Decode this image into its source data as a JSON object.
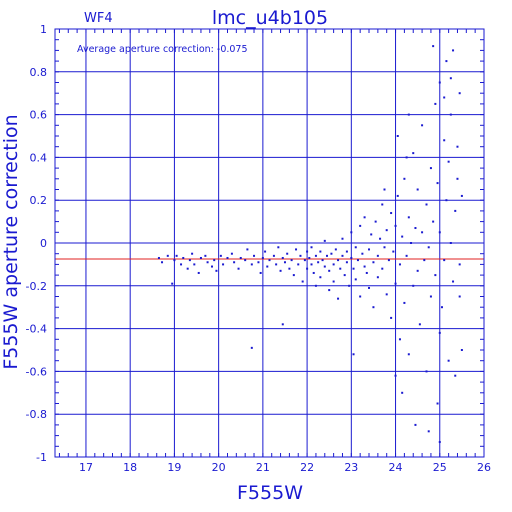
{
  "colors": {
    "frame": "#1a1ad0",
    "points": "#1a1ad0",
    "mean_line": "#e02020",
    "background": "#ffffff"
  },
  "chart_data": {
    "type": "scatter",
    "panel_label": "WF4",
    "title": "lmc_u4b105",
    "xlabel": "F555W",
    "ylabel": "F555W aperture correction",
    "annotation": "Average aperture correction: -0.075",
    "xlim": [
      16.3,
      26.0
    ],
    "ylim": [
      -1.0,
      1.0
    ],
    "grid": true,
    "xticks": [
      17,
      18,
      19,
      20,
      21,
      22,
      23,
      24,
      25,
      26
    ],
    "xtick_labels": [
      "17",
      "18",
      "19",
      "20",
      "21",
      "22",
      "23",
      "24",
      "25",
      "26"
    ],
    "yticks": [
      -1.0,
      -0.8,
      -0.6,
      -0.4,
      -0.2,
      0.0,
      0.2,
      0.4,
      0.6,
      0.8,
      1.0
    ],
    "ytick_labels": [
      "-1",
      "-0.8",
      "-0.6",
      "-0.4",
      "-0.2",
      "0",
      "0.2",
      "0.4",
      "0.6",
      "0.8",
      "1"
    ],
    "mean_line": -0.075,
    "series": [
      {
        "points": [
          [
            18.65,
            -0.07
          ],
          [
            18.72,
            -0.09
          ],
          [
            18.85,
            -0.06
          ],
          [
            18.95,
            -0.19
          ],
          [
            19.0,
            -0.08
          ],
          [
            19.05,
            -0.06
          ],
          [
            19.15,
            -0.1
          ],
          [
            19.2,
            -0.07
          ],
          [
            19.3,
            -0.12
          ],
          [
            19.35,
            -0.08
          ],
          [
            19.4,
            -0.05
          ],
          [
            19.45,
            -0.1
          ],
          [
            19.55,
            -0.14
          ],
          [
            19.6,
            -0.07
          ],
          [
            19.7,
            -0.06
          ],
          [
            19.75,
            -0.09
          ],
          [
            19.85,
            -0.11
          ],
          [
            19.9,
            -0.08
          ],
          [
            19.95,
            -0.13
          ],
          [
            20.05,
            -0.06
          ],
          [
            20.1,
            -0.1
          ],
          [
            20.2,
            -0.07
          ],
          [
            20.3,
            -0.05
          ],
          [
            20.35,
            -0.09
          ],
          [
            20.45,
            -0.12
          ],
          [
            20.5,
            -0.07
          ],
          [
            20.6,
            -0.08
          ],
          [
            20.65,
            -0.03
          ],
          [
            20.75,
            -0.1
          ],
          [
            20.8,
            -0.06
          ],
          [
            20.9,
            -0.09
          ],
          [
            20.95,
            -0.14
          ],
          [
            21.0,
            -0.07
          ],
          [
            21.05,
            -0.04
          ],
          [
            21.1,
            -0.11
          ],
          [
            21.15,
            -0.08
          ],
          [
            21.25,
            -0.06
          ],
          [
            21.3,
            -0.1
          ],
          [
            21.35,
            -0.02
          ],
          [
            21.4,
            -0.13
          ],
          [
            21.45,
            -0.07
          ],
          [
            21.5,
            -0.09
          ],
          [
            21.55,
            -0.05
          ],
          [
            21.6,
            -0.12
          ],
          [
            21.65,
            -0.08
          ],
          [
            21.7,
            -0.15
          ],
          [
            21.75,
            -0.03
          ],
          [
            21.8,
            -0.1
          ],
          [
            21.85,
            -0.06
          ],
          [
            21.9,
            -0.18
          ],
          [
            21.95,
            -0.08
          ],
          [
            22.0,
            -0.04
          ],
          [
            22.0,
            -0.12
          ],
          [
            22.05,
            -0.07
          ],
          [
            22.1,
            -0.1
          ],
          [
            22.1,
            -0.02
          ],
          [
            22.15,
            -0.14
          ],
          [
            22.2,
            -0.06
          ],
          [
            22.2,
            -0.2
          ],
          [
            22.25,
            -0.09
          ],
          [
            22.3,
            -0.04
          ],
          [
            22.3,
            -0.16
          ],
          [
            22.35,
            -0.08
          ],
          [
            22.4,
            -0.11
          ],
          [
            22.4,
            0.01
          ],
          [
            22.45,
            -0.06
          ],
          [
            22.5,
            -0.13
          ],
          [
            22.5,
            -0.22
          ],
          [
            22.55,
            -0.05
          ],
          [
            22.6,
            -0.1
          ],
          [
            22.6,
            -0.18
          ],
          [
            22.65,
            -0.03
          ],
          [
            22.7,
            -0.08
          ],
          [
            22.7,
            -0.26
          ],
          [
            22.75,
            -0.12
          ],
          [
            22.8,
            -0.06
          ],
          [
            22.8,
            0.02
          ],
          [
            22.85,
            -0.15
          ],
          [
            22.9,
            -0.09
          ],
          [
            22.9,
            -0.04
          ],
          [
            22.95,
            -0.2
          ],
          [
            23.0,
            -0.07
          ],
          [
            23.0,
            0.05
          ],
          [
            23.05,
            -0.12
          ],
          [
            23.1,
            -0.02
          ],
          [
            23.1,
            -0.17
          ],
          [
            23.15,
            -0.08
          ],
          [
            23.2,
            0.08
          ],
          [
            23.2,
            -0.25
          ],
          [
            23.25,
            -0.05
          ],
          [
            23.3,
            -0.11
          ],
          [
            23.3,
            0.12
          ],
          [
            23.35,
            -0.14
          ],
          [
            23.4,
            -0.03
          ],
          [
            23.4,
            -0.21
          ],
          [
            23.45,
            0.04
          ],
          [
            23.5,
            -0.09
          ],
          [
            23.5,
            -0.3
          ],
          [
            23.55,
            0.1
          ],
          [
            23.6,
            -0.06
          ],
          [
            23.6,
            -0.16
          ],
          [
            23.65,
            0.02
          ],
          [
            23.7,
            -0.12
          ],
          [
            23.7,
            0.18
          ],
          [
            23.75,
            -0.02
          ],
          [
            23.8,
            -0.24
          ],
          [
            23.8,
            0.06
          ],
          [
            23.85,
            -0.08
          ],
          [
            23.9,
            0.14
          ],
          [
            23.9,
            -0.35
          ],
          [
            23.95,
            -0.04
          ],
          [
            24.0,
            0.08
          ],
          [
            24.0,
            -0.19
          ],
          [
            24.05,
            0.22
          ],
          [
            24.1,
            -0.1
          ],
          [
            24.1,
            -0.45
          ],
          [
            24.15,
            0.03
          ],
          [
            24.2,
            0.3
          ],
          [
            24.2,
            -0.28
          ],
          [
            24.25,
            -0.06
          ],
          [
            24.3,
            0.12
          ],
          [
            24.3,
            -0.52
          ],
          [
            24.35,
            0.0
          ],
          [
            24.4,
            0.42
          ],
          [
            24.4,
            -0.2
          ],
          [
            24.45,
            0.07
          ],
          [
            24.5,
            -0.13
          ],
          [
            24.5,
            0.25
          ],
          [
            24.55,
            -0.38
          ],
          [
            24.6,
            0.05
          ],
          [
            24.6,
            0.55
          ],
          [
            24.65,
            -0.08
          ],
          [
            24.7,
            0.18
          ],
          [
            24.7,
            -0.6
          ],
          [
            24.75,
            -0.02
          ],
          [
            24.8,
            0.35
          ],
          [
            24.8,
            -0.25
          ],
          [
            24.85,
            0.1
          ],
          [
            24.9,
            0.65
          ],
          [
            24.9,
            -0.15
          ],
          [
            24.95,
            0.28
          ],
          [
            25.0,
            -0.42
          ],
          [
            25.0,
            0.75
          ],
          [
            25.0,
            0.05
          ],
          [
            25.05,
            -0.3
          ],
          [
            25.1,
            0.48
          ],
          [
            25.1,
            -0.08
          ],
          [
            25.15,
            0.85
          ],
          [
            25.15,
            0.2
          ],
          [
            25.2,
            -0.55
          ],
          [
            25.2,
            0.38
          ],
          [
            25.25,
            0.0
          ],
          [
            25.25,
            0.6
          ],
          [
            25.3,
            -0.18
          ],
          [
            25.3,
            0.9
          ],
          [
            25.35,
            0.15
          ],
          [
            25.35,
            -0.62
          ],
          [
            25.4,
            0.45
          ],
          [
            25.4,
            0.3
          ],
          [
            25.45,
            -0.1
          ],
          [
            25.45,
            0.7
          ],
          [
            25.5,
            0.22
          ],
          [
            25.5,
            -0.5
          ],
          [
            24.05,
            0.5
          ],
          [
            24.15,
            -0.7
          ],
          [
            24.25,
            0.4
          ],
          [
            24.45,
            -0.85
          ],
          [
            24.0,
            -0.62
          ],
          [
            23.05,
            -0.52
          ],
          [
            21.45,
            -0.38
          ],
          [
            20.75,
            -0.49
          ],
          [
            25.0,
            -0.93
          ],
          [
            24.75,
            -0.88
          ],
          [
            24.85,
            0.92
          ],
          [
            25.25,
            0.77
          ],
          [
            24.95,
            -0.75
          ],
          [
            25.45,
            -0.25
          ],
          [
            25.1,
            0.68
          ],
          [
            24.3,
            0.6
          ],
          [
            23.75,
            0.25
          ]
        ]
      }
    ]
  }
}
